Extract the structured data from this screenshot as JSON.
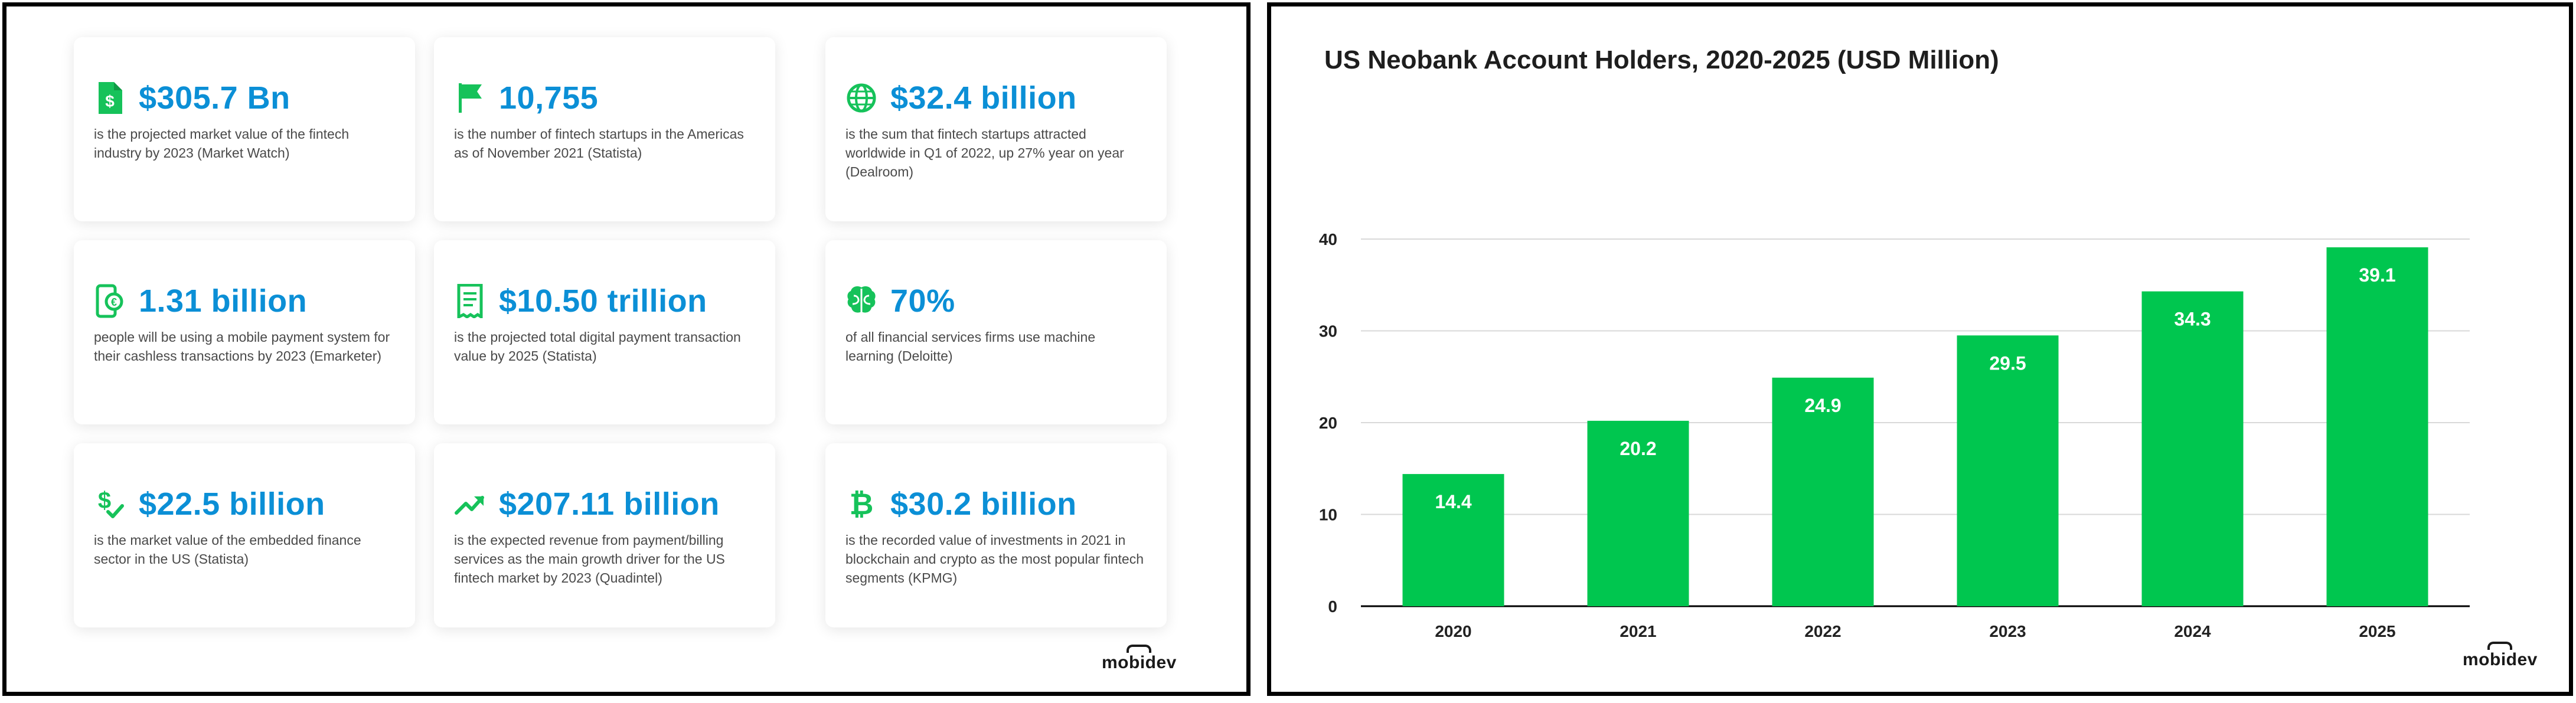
{
  "colors": {
    "stat_blue": "#0b8fd6",
    "icon_green": "#16c25a",
    "bar_green": "#00c64f",
    "text_grey": "#4a4a4a",
    "frame": "#000000"
  },
  "stats_panel": {
    "logo": "mobidev",
    "cards": [
      {
        "icon": "dollar-document-icon",
        "stat": "$305.7 Bn",
        "desc": "is the projected market value of the fintech industry by 2023 (Market Watch)"
      },
      {
        "icon": "flag-icon",
        "stat": "10,755",
        "desc": "is the number of fintech startups in the Americas as of November 2021 (Statista)"
      },
      {
        "icon": "globe-icon",
        "stat": "$32.4 billion",
        "desc": "is the sum that fintech startups attracted worldwide in  Q1 of 2022, up 27% year on year (Dealroom)"
      },
      {
        "icon": "mobile-payment-icon",
        "stat": "1.31 billion",
        "desc": "people will be using a mobile payment system for their cashless transactions by 2023 (Emarketer)"
      },
      {
        "icon": "receipt-icon",
        "stat": "$10.50 trillion",
        "desc": "is the projected total digital payment transaction value by 2025 (Statista)"
      },
      {
        "icon": "brain-icon",
        "stat": "70%",
        "desc": "of all financial services firms use machine learning (Deloitte)"
      },
      {
        "icon": "dollar-check-icon",
        "stat": "$22.5 billion",
        "desc": "is the market value of the embedded finance sector in the US (Statista)"
      },
      {
        "icon": "trend-up-icon",
        "stat": "$207.11 billion",
        "desc": "is the expected revenue from payment/billing services as the main growth driver for the US fintech market by 2023 (Quadintel)"
      },
      {
        "icon": "bitcoin-icon",
        "stat": "$30.2 billion",
        "desc": "is the recorded value of investments in 2021 in blockchain and crypto as the most popular fintech segments (KPMG)"
      }
    ]
  },
  "chart_panel": {
    "logo": "mobidev"
  },
  "chart_data": {
    "type": "bar",
    "title": "US Neobank Account Holders, 2020-2025 (USD Million)",
    "categories": [
      "2020",
      "2021",
      "2022",
      "2023",
      "2024",
      "2025"
    ],
    "values": [
      14.4,
      20.2,
      24.9,
      29.5,
      34.3,
      39.1
    ],
    "data_labels": [
      "14.4",
      "20.2",
      "24.9",
      "29.5",
      "34.3",
      "39.1"
    ],
    "yticks": [
      "0",
      "10",
      "20",
      "30",
      "40"
    ],
    "ylim": [
      0,
      40
    ],
    "xlabel": "",
    "ylabel": "",
    "grid": true,
    "legend": "none"
  }
}
